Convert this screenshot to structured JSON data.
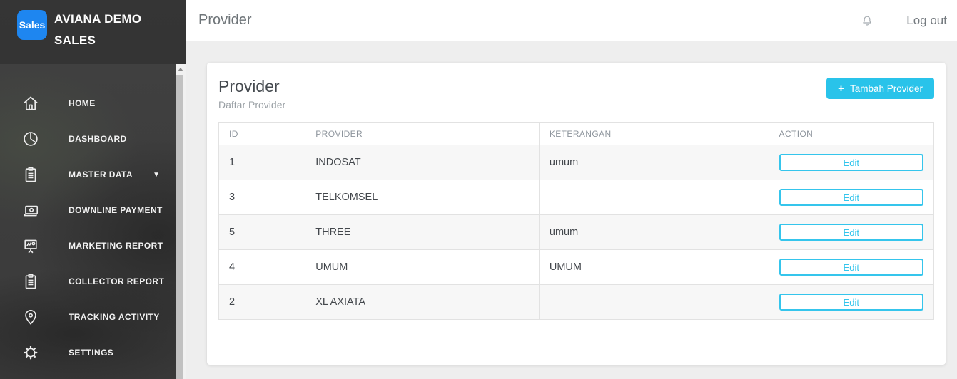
{
  "colors": {
    "accent": "#29c3ea",
    "accent_border": "#35c5ec",
    "logo_blue": "#1e86f0"
  },
  "sidebar": {
    "logo_text": "Sales",
    "brand_line1": "AVIANA DEMO",
    "brand_line2": "SALES",
    "items": [
      {
        "label": "HOME",
        "icon": "home-icon",
        "caret": false
      },
      {
        "label": "DASHBOARD",
        "icon": "dashboard-icon",
        "caret": false
      },
      {
        "label": "MASTER DATA",
        "icon": "master-data-icon",
        "caret": true
      },
      {
        "label": "DOWNLINE PAYMENT",
        "icon": "downline-payment-icon",
        "caret": false
      },
      {
        "label": "MARKETING REPORT",
        "icon": "marketing-report-icon",
        "caret": false
      },
      {
        "label": "COLLECTOR REPORT",
        "icon": "collector-report-icon",
        "caret": false
      },
      {
        "label": "TRACKING ACTIVITY",
        "icon": "tracking-activity-icon",
        "caret": false
      },
      {
        "label": "SETTINGS",
        "icon": "settings-icon",
        "caret": false
      }
    ]
  },
  "header": {
    "title": "Provider",
    "logout_label": "Log out"
  },
  "main": {
    "card": {
      "title": "Provider",
      "subtitle": "Daftar Provider",
      "add_button": {
        "plus": "+",
        "label": "Tambah Provider"
      }
    },
    "table": {
      "columns": [
        "ID",
        "PROVIDER",
        "KETERANGAN",
        "ACTION"
      ],
      "rows": [
        {
          "id": "1",
          "provider": "INDOSAT",
          "keterangan": "umum",
          "action": "Edit"
        },
        {
          "id": "3",
          "provider": "TELKOMSEL",
          "keterangan": "",
          "action": "Edit"
        },
        {
          "id": "5",
          "provider": "THREE",
          "keterangan": "umum",
          "action": "Edit"
        },
        {
          "id": "4",
          "provider": "UMUM",
          "keterangan": "UMUM",
          "action": "Edit"
        },
        {
          "id": "2",
          "provider": "XL AXIATA",
          "keterangan": "",
          "action": "Edit"
        }
      ]
    }
  }
}
